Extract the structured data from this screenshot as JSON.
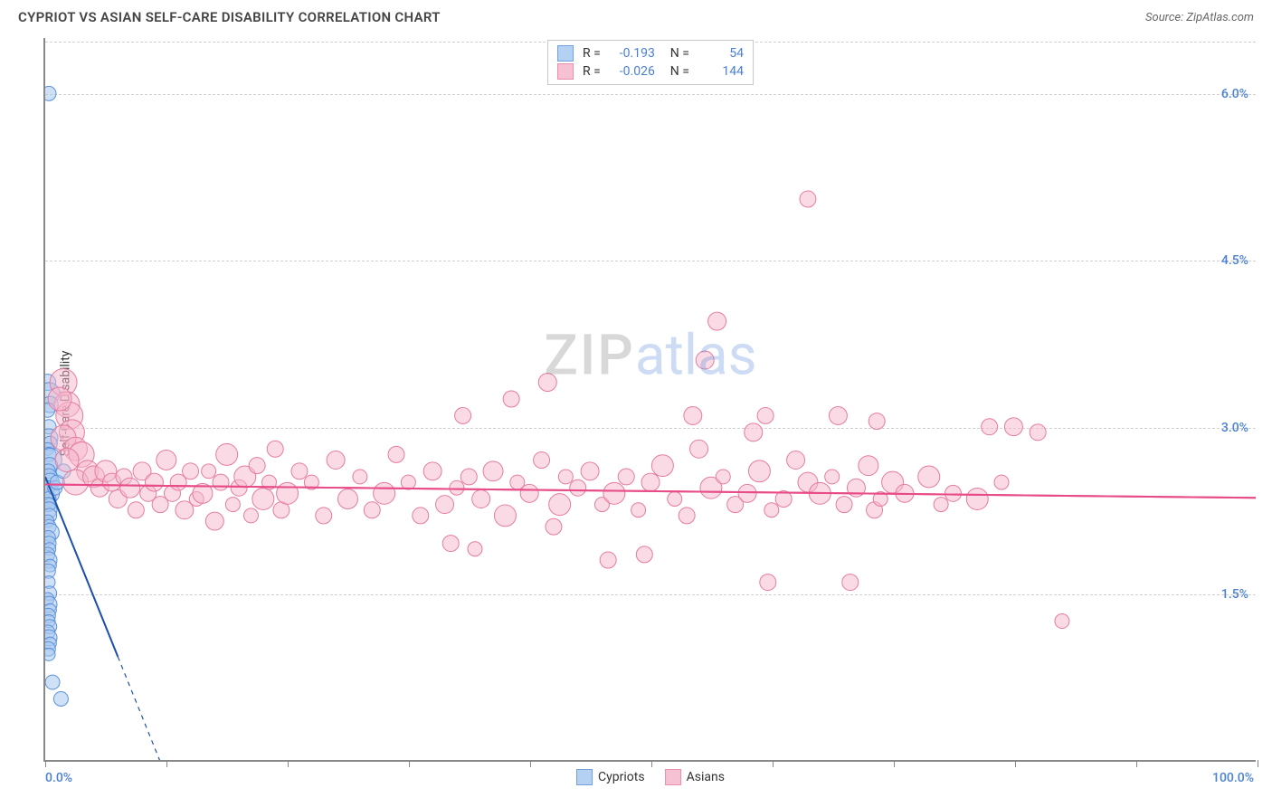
{
  "title": "CYPRIOT VS ASIAN SELF-CARE DISABILITY CORRELATION CHART",
  "source": "Source: ZipAtlas.com",
  "ylabel": "Self-Care Disability",
  "watermark": {
    "part1": "ZIP",
    "part2": "atlas"
  },
  "chart": {
    "type": "scatter",
    "xlim": [
      0,
      100
    ],
    "ylim": [
      0,
      6.5
    ],
    "xtick_positions": [
      0,
      10,
      20,
      30,
      40,
      50,
      60,
      70,
      80,
      90,
      100
    ],
    "xtick_labels_shown": {
      "0": "0.0%",
      "100": "100.0%"
    },
    "ytick_positions": [
      1.5,
      3.0,
      4.5,
      6.0
    ],
    "ytick_labels": [
      "1.5%",
      "3.0%",
      "4.5%",
      "6.0%"
    ],
    "grid_color": "#d0d0d0",
    "axis_color": "#888888",
    "background_color": "#ffffff",
    "tick_label_color": "#4a7fd8",
    "series": [
      {
        "name": "Cypriots",
        "fill": "#a8c8f0",
        "stroke": "#5b8fd8",
        "fill_opacity": 0.55,
        "marker_radius_range": [
          6,
          13
        ],
        "trend": {
          "slope": -0.27,
          "intercept": 2.55,
          "solid_x_end": 6,
          "color": "#1b4fa8",
          "width": 2
        },
        "stats": {
          "R": "-0.193",
          "N": "54"
        },
        "points": [
          [
            0.3,
            6.0,
            8
          ],
          [
            0.2,
            3.4,
            9
          ],
          [
            0.3,
            3.3,
            12
          ],
          [
            0.4,
            3.2,
            9
          ],
          [
            0.2,
            3.15,
            8
          ],
          [
            0.3,
            3.0,
            8
          ],
          [
            0.3,
            2.9,
            10
          ],
          [
            0.4,
            2.85,
            8
          ],
          [
            0.2,
            2.8,
            7
          ],
          [
            0.3,
            2.75,
            8
          ],
          [
            0.4,
            2.7,
            13
          ],
          [
            0.35,
            2.65,
            9
          ],
          [
            0.25,
            2.6,
            8
          ],
          [
            0.3,
            2.55,
            9
          ],
          [
            0.4,
            2.5,
            10
          ],
          [
            0.2,
            2.45,
            8
          ],
          [
            0.35,
            2.4,
            11
          ],
          [
            0.3,
            2.35,
            8
          ],
          [
            0.4,
            2.3,
            7
          ],
          [
            0.25,
            2.3,
            8
          ],
          [
            0.3,
            2.25,
            9
          ],
          [
            0.35,
            2.2,
            8
          ],
          [
            0.2,
            2.15,
            7
          ],
          [
            0.3,
            2.1,
            8
          ],
          [
            0.4,
            2.05,
            10
          ],
          [
            0.25,
            2.0,
            8
          ],
          [
            0.3,
            1.95,
            8
          ],
          [
            0.35,
            1.9,
            7
          ],
          [
            0.2,
            1.85,
            8
          ],
          [
            0.3,
            1.8,
            9
          ],
          [
            0.4,
            1.75,
            7
          ],
          [
            0.25,
            1.7,
            8
          ],
          [
            0.3,
            1.6,
            7
          ],
          [
            0.35,
            1.5,
            8
          ],
          [
            0.2,
            1.45,
            7
          ],
          [
            0.3,
            1.4,
            9
          ],
          [
            0.4,
            1.35,
            7
          ],
          [
            0.25,
            1.3,
            8
          ],
          [
            0.3,
            1.25,
            7
          ],
          [
            0.35,
            1.2,
            8
          ],
          [
            0.2,
            1.15,
            8
          ],
          [
            0.3,
            1.1,
            9
          ],
          [
            0.4,
            1.05,
            7
          ],
          [
            0.25,
            1.0,
            8
          ],
          [
            0.3,
            0.95,
            7
          ],
          [
            0.6,
            0.7,
            8
          ],
          [
            1.3,
            0.55,
            8
          ],
          [
            0.8,
            2.45,
            8
          ],
          [
            1.0,
            2.5,
            8
          ],
          [
            1.5,
            2.6,
            8
          ]
        ]
      },
      {
        "name": "Asians",
        "fill": "#f5b8cc",
        "stroke": "#e67ba0",
        "fill_opacity": 0.5,
        "marker_radius_range": [
          7,
          15
        ],
        "trend": {
          "slope": -0.0012,
          "intercept": 2.48,
          "solid_x_end": 100,
          "color": "#e84c88",
          "width": 2
        },
        "stats": {
          "R": "-0.026",
          "N": "144"
        },
        "points": [
          [
            1.5,
            3.4,
            15
          ],
          [
            1.8,
            3.2,
            14
          ],
          [
            2.0,
            3.1,
            15
          ],
          [
            1.2,
            3.25,
            13
          ],
          [
            2.2,
            2.95,
            14
          ],
          [
            1.5,
            2.9,
            14
          ],
          [
            2.5,
            2.8,
            13
          ],
          [
            3.0,
            2.75,
            14
          ],
          [
            1.8,
            2.7,
            13
          ],
          [
            3.5,
            2.6,
            12
          ],
          [
            2.5,
            2.5,
            14
          ],
          [
            4.0,
            2.55,
            12
          ],
          [
            4.5,
            2.45,
            10
          ],
          [
            5.0,
            2.6,
            12
          ],
          [
            5.5,
            2.5,
            10
          ],
          [
            6.0,
            2.35,
            10
          ],
          [
            6.5,
            2.55,
            9
          ],
          [
            7.0,
            2.45,
            11
          ],
          [
            7.5,
            2.25,
            9
          ],
          [
            8.0,
            2.6,
            10
          ],
          [
            8.5,
            2.4,
            9
          ],
          [
            9.0,
            2.5,
            10
          ],
          [
            9.5,
            2.3,
            9
          ],
          [
            10,
            2.7,
            11
          ],
          [
            10.5,
            2.4,
            9
          ],
          [
            11,
            2.5,
            9
          ],
          [
            11.5,
            2.25,
            10
          ],
          [
            12,
            2.6,
            9
          ],
          [
            12.5,
            2.35,
            8
          ],
          [
            13,
            2.4,
            11
          ],
          [
            13.5,
            2.6,
            8
          ],
          [
            14,
            2.15,
            10
          ],
          [
            14.5,
            2.5,
            9
          ],
          [
            15,
            2.75,
            12
          ],
          [
            15.5,
            2.3,
            8
          ],
          [
            16,
            2.45,
            9
          ],
          [
            16.5,
            2.55,
            12
          ],
          [
            17,
            2.2,
            8
          ],
          [
            17.5,
            2.65,
            9
          ],
          [
            18,
            2.35,
            12
          ],
          [
            18.5,
            2.5,
            8
          ],
          [
            19,
            2.8,
            9
          ],
          [
            19.5,
            2.25,
            9
          ],
          [
            20,
            2.4,
            12
          ],
          [
            21,
            2.6,
            9
          ],
          [
            22,
            2.5,
            8
          ],
          [
            23,
            2.2,
            9
          ],
          [
            24,
            2.7,
            10
          ],
          [
            25,
            2.35,
            11
          ],
          [
            26,
            2.55,
            8
          ],
          [
            27,
            2.25,
            9
          ],
          [
            28,
            2.4,
            12
          ],
          [
            29,
            2.75,
            9
          ],
          [
            30,
            2.5,
            8
          ],
          [
            31,
            2.2,
            9
          ],
          [
            32,
            2.6,
            10
          ],
          [
            33,
            2.3,
            10
          ],
          [
            33.5,
            1.95,
            9
          ],
          [
            34,
            2.45,
            8
          ],
          [
            34.5,
            3.1,
            9
          ],
          [
            35,
            2.55,
            9
          ],
          [
            35.5,
            1.9,
            8
          ],
          [
            36,
            2.35,
            10
          ],
          [
            37,
            2.6,
            11
          ],
          [
            38,
            2.2,
            12
          ],
          [
            38.5,
            3.25,
            9
          ],
          [
            39,
            2.5,
            8
          ],
          [
            40,
            2.4,
            10
          ],
          [
            41,
            2.7,
            9
          ],
          [
            41.5,
            3.4,
            10
          ],
          [
            42,
            2.1,
            9
          ],
          [
            42.5,
            2.3,
            12
          ],
          [
            43,
            2.55,
            8
          ],
          [
            44,
            2.45,
            9
          ],
          [
            45,
            2.6,
            10
          ],
          [
            46,
            2.3,
            8
          ],
          [
            46.5,
            1.8,
            9
          ],
          [
            47,
            2.4,
            12
          ],
          [
            48,
            2.55,
            9
          ],
          [
            49,
            2.25,
            8
          ],
          [
            49.5,
            1.85,
            9
          ],
          [
            50,
            2.5,
            10
          ],
          [
            51,
            2.65,
            12
          ],
          [
            52,
            2.35,
            8
          ],
          [
            53,
            2.2,
            9
          ],
          [
            53.5,
            3.1,
            10
          ],
          [
            54,
            2.8,
            10
          ],
          [
            54.5,
            3.6,
            10
          ],
          [
            55,
            2.45,
            12
          ],
          [
            56,
            2.55,
            8
          ],
          [
            57,
            2.3,
            9
          ],
          [
            58,
            2.4,
            10
          ],
          [
            58.5,
            2.95,
            10
          ],
          [
            59,
            2.6,
            12
          ],
          [
            59.5,
            3.1,
            9
          ],
          [
            59.7,
            1.6,
            9
          ],
          [
            60,
            2.25,
            8
          ],
          [
            61,
            2.35,
            9
          ],
          [
            62,
            2.7,
            10
          ],
          [
            63,
            2.5,
            11
          ],
          [
            64,
            2.4,
            12
          ],
          [
            65,
            2.55,
            8
          ],
          [
            65.5,
            3.1,
            10
          ],
          [
            66,
            2.3,
            9
          ],
          [
            66.5,
            1.6,
            9
          ],
          [
            67,
            2.45,
            10
          ],
          [
            68,
            2.65,
            11
          ],
          [
            68.5,
            2.25,
            9
          ],
          [
            68.7,
            3.05,
            9
          ],
          [
            69,
            2.35,
            8
          ],
          [
            70,
            2.5,
            12
          ],
          [
            71,
            2.4,
            10
          ],
          [
            73,
            2.55,
            12
          ],
          [
            74,
            2.3,
            8
          ],
          [
            75,
            2.4,
            9
          ],
          [
            77,
            2.35,
            12
          ],
          [
            78,
            3.0,
            9
          ],
          [
            79,
            2.5,
            8
          ],
          [
            80,
            3.0,
            10
          ],
          [
            82,
            2.95,
            9
          ],
          [
            84,
            1.25,
            8
          ],
          [
            63,
            5.05,
            9
          ],
          [
            55.5,
            3.95,
            10
          ]
        ]
      }
    ]
  },
  "legend_bottom": [
    {
      "label": "Cypriots",
      "fill": "#a8c8f0",
      "stroke": "#5b8fd8"
    },
    {
      "label": "Asians",
      "fill": "#f5b8cc",
      "stroke": "#e67ba0"
    }
  ]
}
